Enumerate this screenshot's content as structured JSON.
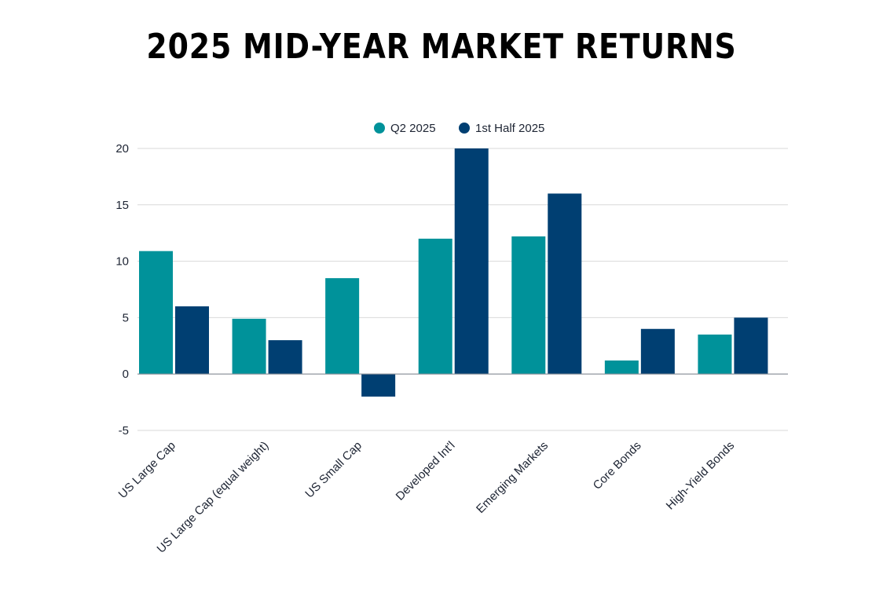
{
  "colors": {
    "q2": "#00929a",
    "half": "#003f72",
    "grid": "#d9d9d9",
    "zero": "#8a9099"
  },
  "chart_data": {
    "type": "bar",
    "title": "2025 MID-YEAR MARKET RETURNS",
    "xlabel": "",
    "ylabel": "",
    "ylim": [
      -5,
      20
    ],
    "yticks": [
      20,
      15,
      10,
      5,
      0,
      -5
    ],
    "grid": true,
    "legend_position": "top-center",
    "categories": [
      "US Large Cap",
      "US Large Cap (equal weight)",
      "US Small Cap",
      "Developed Int'l",
      "Emerging Markets",
      "Core Bonds",
      "High-Yield Bonds"
    ],
    "series": [
      {
        "name": "Q2 2025",
        "values": [
          10.9,
          4.9,
          8.5,
          12.0,
          12.2,
          1.2,
          3.5
        ]
      },
      {
        "name": "1st Half 2025",
        "values": [
          6.0,
          3.0,
          -2.0,
          20.0,
          16.0,
          4.0,
          5.0
        ]
      }
    ]
  }
}
